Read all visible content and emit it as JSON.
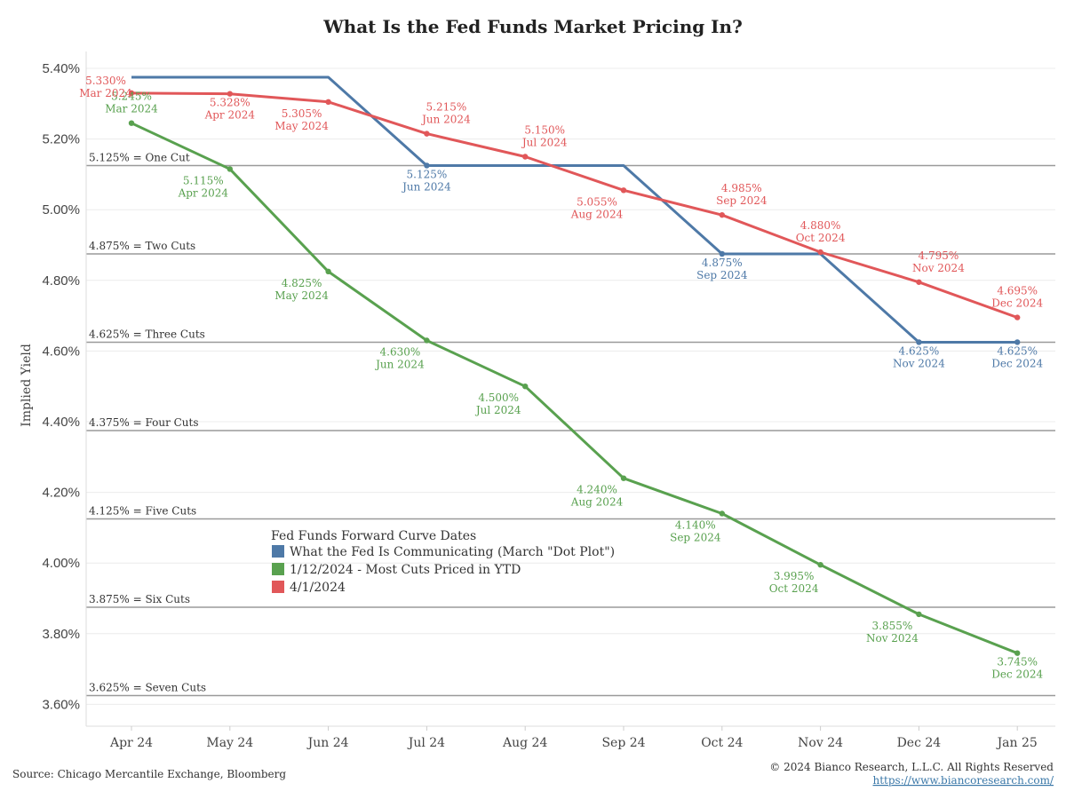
{
  "colors": {
    "blue": "#4e79a7",
    "green": "#59a14f",
    "red": "#e15759",
    "ref_line": "#9a9a9a",
    "grid": "#ececec"
  },
  "footer": {
    "source": "Source: Chicago Mercantile Exchange, Bloomberg",
    "copyright": "© 2024 Bianco Research, L.L.C. All Rights Reserved",
    "url": "https://www.biancoresearch.com/"
  },
  "chart_data": {
    "type": "line",
    "title": "What Is the Fed Funds Market Pricing In?",
    "ylabel": "Implied Yield",
    "xlabel": "",
    "x_ticks": [
      "Apr 24",
      "May 24",
      "Jun 24",
      "Jul 24",
      "Aug 24",
      "Sep 24",
      "Oct 24",
      "Nov 24",
      "Dec 24",
      "Jan 25"
    ],
    "y_ticks": [
      "5.40%",
      "5.20%",
      "5.00%",
      "4.80%",
      "4.60%",
      "4.40%",
      "4.20%",
      "4.00%",
      "3.80%",
      "3.60%"
    ],
    "ylim": [
      3.6,
      5.4
    ],
    "grid": true,
    "reference_lines": [
      {
        "value": 5.125,
        "label": "5.125% = One Cut"
      },
      {
        "value": 4.875,
        "label": "4.875% = Two Cuts"
      },
      {
        "value": 4.625,
        "label": "4.625% = Three Cuts"
      },
      {
        "value": 4.375,
        "label": "4.375% = Four Cuts"
      },
      {
        "value": 4.125,
        "label": "4.125% = Five Cuts"
      },
      {
        "value": 3.875,
        "label": "3.875% = Six Cuts"
      },
      {
        "value": 3.625,
        "label": "3.625% = Seven Cuts"
      }
    ],
    "legend": {
      "title": "Fed Funds Forward Curve Dates",
      "placement": "bottom-left",
      "entries": [
        {
          "label": "What the Fed Is Communicating (March \"Dot Plot\")",
          "color": "#4e79a7"
        },
        {
          "label": "1/12/2024 - Most Cuts Priced in YTD",
          "color": "#59a14f"
        },
        {
          "label": "4/1/2024",
          "color": "#e15759"
        }
      ]
    },
    "series": [
      {
        "name": "What the Fed Is Communicating (March \"Dot Plot\")",
        "color": "#4e79a7",
        "points": [
          {
            "x": 0,
            "y": 5.375
          },
          {
            "x": 2,
            "y": 5.375
          },
          {
            "x": 3,
            "y": 5.125,
            "marker": true,
            "label": [
              "5.125%",
              "Jun 2024"
            ],
            "pos": "below"
          },
          {
            "x": 5,
            "y": 5.125
          },
          {
            "x": 6,
            "y": 4.875,
            "marker": true,
            "label": [
              "4.875%",
              "Sep 2024"
            ],
            "pos": "below"
          },
          {
            "x": 7,
            "y": 4.875
          },
          {
            "x": 8,
            "y": 4.625,
            "marker": true,
            "label": [
              "4.625%",
              "Nov 2024"
            ],
            "pos": "below"
          },
          {
            "x": 9,
            "y": 4.625,
            "marker": true,
            "label": [
              "4.625%",
              "Dec 2024"
            ],
            "pos": "below"
          }
        ]
      },
      {
        "name": "1/12/2024 - Most Cuts Priced in YTD",
        "color": "#59a14f",
        "points": [
          {
            "x": 0,
            "y": 5.245,
            "marker": true,
            "label": [
              "5.245%",
              "Mar 2024"
            ],
            "pos": "above"
          },
          {
            "x": 1,
            "y": 5.115,
            "marker": true,
            "label": [
              "5.115%",
              "Apr 2024"
            ],
            "pos": "below-left"
          },
          {
            "x": 2,
            "y": 4.825,
            "marker": true,
            "label": [
              "4.825%",
              "May 2024"
            ],
            "pos": "below-left"
          },
          {
            "x": 3,
            "y": 4.63,
            "marker": true,
            "label": [
              "4.630%",
              "Jun 2024"
            ],
            "pos": "below-left"
          },
          {
            "x": 4,
            "y": 4.5,
            "marker": true,
            "label": [
              "4.500%",
              "Jul 2024"
            ],
            "pos": "below-left"
          },
          {
            "x": 5,
            "y": 4.24,
            "marker": true,
            "label": [
              "4.240%",
              "Aug 2024"
            ],
            "pos": "below-left"
          },
          {
            "x": 6,
            "y": 4.14,
            "marker": true,
            "label": [
              "4.140%",
              "Sep 2024"
            ],
            "pos": "below-left"
          },
          {
            "x": 7,
            "y": 3.995,
            "marker": true,
            "label": [
              "3.995%",
              "Oct 2024"
            ],
            "pos": "below-left"
          },
          {
            "x": 8,
            "y": 3.855,
            "marker": true,
            "label": [
              "3.855%",
              "Nov 2024"
            ],
            "pos": "below-left"
          },
          {
            "x": 9,
            "y": 3.745,
            "marker": true,
            "label": [
              "3.745%",
              "Dec 2024"
            ],
            "pos": "below"
          }
        ]
      },
      {
        "name": "4/1/2024",
        "color": "#e15759",
        "points": [
          {
            "x": 0,
            "y": 5.33,
            "marker": true,
            "label": [
              "5.330%",
              "Mar 2024"
            ],
            "pos": "left"
          },
          {
            "x": 1,
            "y": 5.328,
            "marker": true,
            "label": [
              "5.328%",
              "Apr 2024"
            ],
            "pos": "below"
          },
          {
            "x": 2,
            "y": 5.305,
            "marker": true,
            "label": [
              "5.305%",
              "May 2024"
            ],
            "pos": "below-left"
          },
          {
            "x": 3,
            "y": 5.215,
            "marker": true,
            "label": [
              "5.215%",
              "Jun 2024"
            ],
            "pos": "above-right"
          },
          {
            "x": 4,
            "y": 5.15,
            "marker": true,
            "label": [
              "5.150%",
              "Jul 2024"
            ],
            "pos": "above-right"
          },
          {
            "x": 5,
            "y": 5.055,
            "marker": true,
            "label": [
              "5.055%",
              "Aug 2024"
            ],
            "pos": "below-left"
          },
          {
            "x": 6,
            "y": 4.985,
            "marker": true,
            "label": [
              "4.985%",
              "Sep 2024"
            ],
            "pos": "above-right"
          },
          {
            "x": 7,
            "y": 4.88,
            "marker": true,
            "label": [
              "4.880%",
              "Oct 2024"
            ],
            "pos": "above"
          },
          {
            "x": 8,
            "y": 4.795,
            "marker": true,
            "label": [
              "4.795%",
              "Nov 2024"
            ],
            "pos": "above-right"
          },
          {
            "x": 9,
            "y": 4.695,
            "marker": true,
            "label": [
              "4.695%",
              "Dec 2024"
            ],
            "pos": "above"
          }
        ]
      }
    ]
  }
}
